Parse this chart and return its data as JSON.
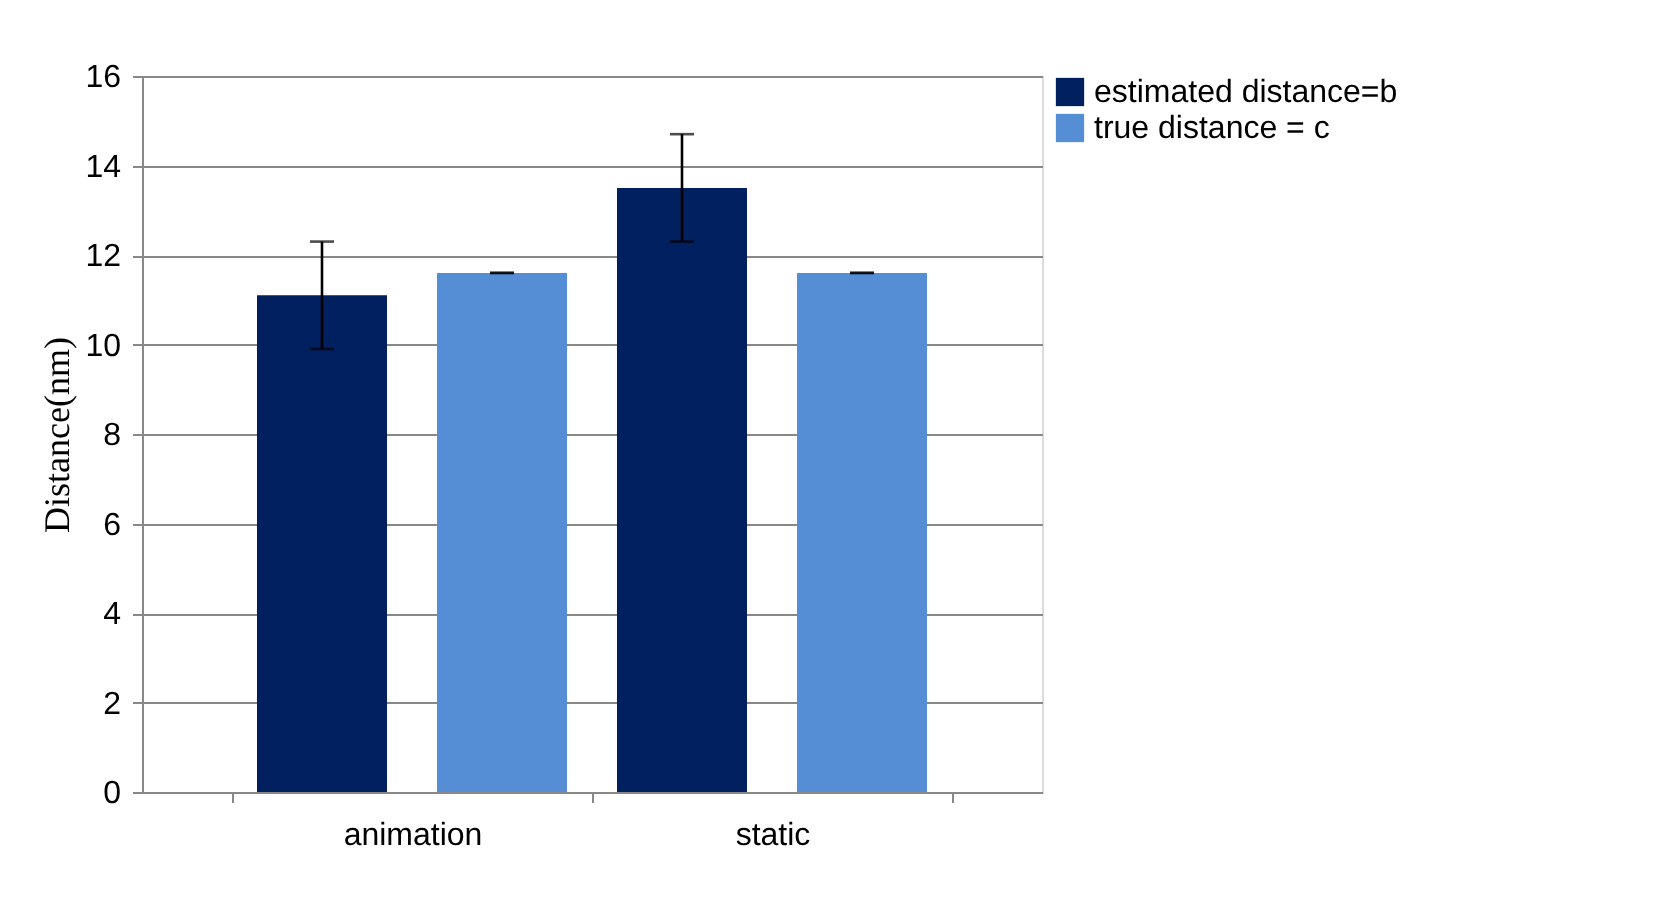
{
  "chart_data": {
    "type": "bar",
    "ylabel": "Distance(nm)",
    "categories": [
      "animation",
      "static"
    ],
    "series": [
      {
        "name": "estimated distance=b",
        "color": "#002060",
        "values": [
          11.1,
          13.5
        ],
        "errors": [
          1.2,
          1.2
        ]
      },
      {
        "name": "true distance = c",
        "color": "#558ed5",
        "values": [
          11.6,
          11.6
        ],
        "errors": [
          0,
          0
        ]
      }
    ],
    "ylim": [
      0,
      16
    ],
    "yticks": [
      0,
      2,
      4,
      6,
      8,
      10,
      12,
      14,
      16
    ],
    "grid": "y",
    "legend": "right"
  }
}
